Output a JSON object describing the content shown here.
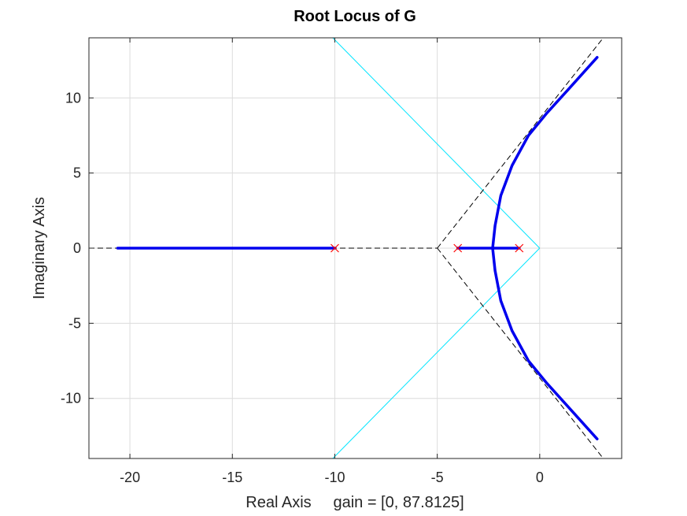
{
  "chart_data": {
    "type": "line",
    "title": "Root Locus of G",
    "xlabel": "Real Axis     gain = [0, 87.8125]",
    "ylabel": "Imaginary Axis",
    "xlim": [
      -22,
      4
    ],
    "ylim": [
      -14,
      14
    ],
    "grid": true,
    "xticks": [
      -20,
      -15,
      -10,
      -5,
      0
    ],
    "yticks": [
      -10,
      -5,
      0,
      5,
      10
    ],
    "xtick_labels": [
      "-20",
      "-15",
      "-10",
      "-5",
      "0"
    ],
    "ytick_labels": [
      "-10",
      "-5",
      "0",
      "5",
      "10"
    ],
    "poles": [
      [
        -10,
        0
      ],
      [
        -4,
        0
      ],
      [
        -1,
        0
      ]
    ],
    "branches": [
      {
        "x": [
          -10,
          -20.6
        ],
        "y": [
          0,
          0
        ]
      },
      {
        "x": [
          -4,
          -2.3
        ],
        "y": [
          0,
          0
        ]
      },
      {
        "x": [
          -1,
          -2.3
        ],
        "y": [
          0,
          0
        ]
      },
      {
        "x": [
          -2.3,
          -2.18,
          -1.9,
          -1.35,
          -0.55,
          0.35,
          1.35,
          2.8
        ],
        "y": [
          0,
          1.5,
          3.5,
          5.5,
          7.5,
          9.0,
          10.5,
          12.7
        ]
      },
      {
        "x": [
          -2.3,
          -2.18,
          -1.9,
          -1.35,
          -0.55,
          0.35,
          1.35,
          2.8
        ],
        "y": [
          0,
          -1.5,
          -3.5,
          -5.5,
          -7.5,
          -9.0,
          -10.5,
          -12.7
        ]
      }
    ],
    "asymptotes": [
      {
        "x": [
          -22,
          -5
        ],
        "y": [
          0,
          0
        ]
      },
      {
        "x": [
          -5,
          3.1
        ],
        "y": [
          0,
          14
        ]
      },
      {
        "x": [
          -5,
          3.1
        ],
        "y": [
          0,
          -14
        ]
      }
    ],
    "damping_lines": [
      {
        "x": [
          0,
          -10.1
        ],
        "y": [
          0,
          14
        ]
      },
      {
        "x": [
          0,
          -10.1
        ],
        "y": [
          0,
          -14
        ]
      }
    ],
    "colors": {
      "locus": "#0000ee",
      "pole_marker": "#ff0000",
      "asymptote": "#000000",
      "damping": "#00e5ff",
      "grid": "#dcdcdc",
      "axes": "#262626"
    }
  }
}
